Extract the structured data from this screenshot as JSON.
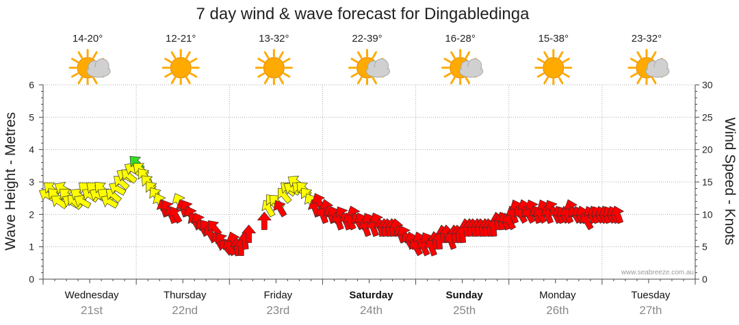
{
  "chart_data": {
    "type": "line",
    "title": "7 day wind & wave forecast for Dingabledinga",
    "ylabel_left": "Wave Height - Metres",
    "ylabel_right": "Wind Speed - Knots",
    "ylim_left": [
      0,
      6
    ],
    "ylim_right": [
      0,
      30
    ],
    "y_ticks_left": [
      "0",
      "1",
      "2",
      "3",
      "4",
      "5",
      "6"
    ],
    "y_ticks_right": [
      "0",
      "5",
      "10",
      "15",
      "20",
      "25",
      "30"
    ],
    "watermark": "www.seabreeze.com.au",
    "grid": true,
    "days": [
      {
        "name": "Wednesday",
        "date": "21st",
        "temp": "14-20°",
        "weather": "partly-cloudy",
        "bold": false
      },
      {
        "name": "Thursday",
        "date": "22nd",
        "temp": "12-21°",
        "weather": "sunny",
        "bold": false
      },
      {
        "name": "Friday",
        "date": "23rd",
        "temp": "13-32°",
        "weather": "sunny",
        "bold": false
      },
      {
        "name": "Saturday",
        "date": "24th",
        "temp": "22-39°",
        "weather": "partly-cloudy",
        "bold": true
      },
      {
        "name": "Sunday",
        "date": "25th",
        "temp": "16-28°",
        "weather": "partly-cloudy",
        "bold": true
      },
      {
        "name": "Monday",
        "date": "26th",
        "temp": "15-38°",
        "weather": "sunny",
        "bold": false
      },
      {
        "name": "Tuesday",
        "date": "27th",
        "temp": "23-32°",
        "weather": "partly-cloudy",
        "bold": false
      }
    ],
    "wind_series": {
      "name": "Wind",
      "x_unit": "hours from Wednesday 00:00",
      "points": [
        [
          1,
          13,
          150,
          "yellow"
        ],
        [
          2,
          14,
          140,
          "yellow"
        ],
        [
          3,
          13,
          135,
          "yellow"
        ],
        [
          4,
          12,
          145,
          "yellow"
        ],
        [
          5,
          14,
          150,
          "yellow"
        ],
        [
          6,
          13,
          140,
          "yellow"
        ],
        [
          7,
          12,
          150,
          "yellow"
        ],
        [
          8,
          12,
          135,
          "yellow"
        ],
        [
          9,
          13,
          145,
          "yellow"
        ],
        [
          10,
          12,
          150,
          "yellow"
        ],
        [
          11,
          14,
          140,
          "yellow"
        ],
        [
          12,
          13,
          145,
          "yellow"
        ],
        [
          13,
          14,
          140,
          "yellow"
        ],
        [
          14,
          13,
          150,
          "yellow"
        ],
        [
          15,
          14,
          135,
          "yellow"
        ],
        [
          16,
          13,
          145,
          "yellow"
        ],
        [
          17,
          12,
          150,
          "yellow"
        ],
        [
          18,
          13,
          140,
          "yellow"
        ],
        [
          19,
          14,
          150,
          "yellow"
        ],
        [
          20,
          15,
          140,
          "yellow"
        ],
        [
          21,
          16,
          150,
          "yellow"
        ],
        [
          22,
          16,
          140,
          "yellow"
        ],
        [
          23,
          17,
          150,
          "yellow"
        ],
        [
          24,
          18,
          135,
          "green"
        ],
        [
          25,
          17,
          140,
          "yellow"
        ],
        [
          26,
          16,
          130,
          "yellow"
        ],
        [
          27,
          15,
          135,
          "yellow"
        ],
        [
          28,
          14,
          130,
          "yellow"
        ],
        [
          29,
          13,
          125,
          "yellow"
        ],
        [
          30,
          12,
          115,
          "yellow"
        ],
        [
          31,
          11,
          110,
          "red"
        ],
        [
          32,
          11,
          120,
          "red"
        ],
        [
          33,
          10,
          110,
          "red"
        ],
        [
          34,
          10,
          120,
          "red"
        ],
        [
          35,
          12,
          115,
          "yellow"
        ],
        [
          36,
          11,
          110,
          "red"
        ],
        [
          37,
          11,
          120,
          "red"
        ],
        [
          38,
          10,
          115,
          "red"
        ],
        [
          39,
          9,
          120,
          "red"
        ],
        [
          40,
          9,
          115,
          "red"
        ],
        [
          41,
          8,
          120,
          "red"
        ],
        [
          42,
          8,
          125,
          "red"
        ],
        [
          43,
          7,
          120,
          "red"
        ],
        [
          44,
          8,
          130,
          "red"
        ],
        [
          45,
          6,
          120,
          "red"
        ],
        [
          46,
          6,
          125,
          "red"
        ],
        [
          47,
          5,
          130,
          "red"
        ],
        [
          48,
          5,
          120,
          "red"
        ],
        [
          49,
          6,
          110,
          "red"
        ],
        [
          50,
          5,
          95,
          "red"
        ],
        [
          51,
          5,
          90,
          "red"
        ],
        [
          52,
          6,
          95,
          "red"
        ],
        [
          53,
          7,
          90,
          "red"
        ],
        [
          57,
          9,
          90,
          "red"
        ],
        [
          58,
          11,
          120,
          "yellow"
        ],
        [
          59,
          12,
          130,
          "yellow"
        ],
        [
          60,
          12,
          135,
          "yellow"
        ],
        [
          61,
          11,
          120,
          "red"
        ],
        [
          62,
          13,
          130,
          "yellow"
        ],
        [
          63,
          14,
          140,
          "yellow"
        ],
        [
          64,
          14,
          150,
          "yellow"
        ],
        [
          65,
          15,
          145,
          "yellow"
        ],
        [
          66,
          14,
          140,
          "yellow"
        ],
        [
          67,
          14,
          135,
          "yellow"
        ],
        [
          68,
          13,
          130,
          "yellow"
        ],
        [
          69,
          12,
          120,
          "yellow"
        ],
        [
          70,
          11,
          110,
          "red"
        ],
        [
          71,
          12,
          115,
          "red"
        ],
        [
          72,
          10,
          110,
          "red"
        ],
        [
          73,
          11,
          105,
          "red"
        ],
        [
          74,
          10,
          110,
          "red"
        ],
        [
          75,
          10,
          115,
          "red"
        ],
        [
          76,
          9,
          110,
          "red"
        ],
        [
          77,
          10,
          120,
          "red"
        ],
        [
          78,
          9,
          110,
          "red"
        ],
        [
          79,
          9,
          115,
          "red"
        ],
        [
          80,
          10,
          110,
          "red"
        ],
        [
          81,
          9,
          120,
          "red"
        ],
        [
          82,
          9,
          115,
          "red"
        ],
        [
          83,
          8,
          110,
          "red"
        ],
        [
          84,
          9,
          120,
          "red"
        ],
        [
          85,
          8,
          110,
          "red"
        ],
        [
          86,
          9,
          115,
          "red"
        ],
        [
          87,
          8,
          100,
          "red"
        ],
        [
          88,
          8,
          95,
          "red"
        ],
        [
          89,
          8,
          100,
          "red"
        ],
        [
          90,
          8,
          95,
          "red"
        ],
        [
          91,
          8,
          100,
          "red"
        ],
        [
          92,
          7,
          110,
          "red"
        ],
        [
          93,
          7,
          115,
          "red"
        ],
        [
          94,
          6,
          120,
          "red"
        ],
        [
          95,
          6,
          110,
          "red"
        ],
        [
          96,
          5,
          120,
          "red"
        ],
        [
          97,
          6,
          110,
          "red"
        ],
        [
          98,
          5,
          115,
          "red"
        ],
        [
          99,
          6,
          120,
          "red"
        ],
        [
          100,
          5,
          110,
          "red"
        ],
        [
          101,
          6,
          100,
          "red"
        ],
        [
          102,
          6,
          95,
          "red"
        ],
        [
          103,
          7,
          100,
          "red"
        ],
        [
          104,
          7,
          95,
          "red"
        ],
        [
          105,
          6,
          110,
          "red"
        ],
        [
          106,
          7,
          95,
          "red"
        ],
        [
          107,
          7,
          100,
          "red"
        ],
        [
          108,
          7,
          95,
          "red"
        ],
        [
          109,
          8,
          100,
          "red"
        ],
        [
          110,
          8,
          95,
          "red"
        ],
        [
          111,
          8,
          100,
          "red"
        ],
        [
          112,
          8,
          95,
          "red"
        ],
        [
          113,
          8,
          100,
          "red"
        ],
        [
          114,
          8,
          95,
          "red"
        ],
        [
          115,
          8,
          100,
          "red"
        ],
        [
          116,
          8,
          95,
          "red"
        ],
        [
          117,
          9,
          100,
          "red"
        ],
        [
          118,
          9,
          95,
          "red"
        ],
        [
          119,
          9,
          110,
          "red"
        ],
        [
          120,
          9,
          120,
          "red"
        ],
        [
          121,
          10,
          110,
          "red"
        ],
        [
          122,
          11,
          115,
          "red"
        ],
        [
          123,
          10,
          120,
          "red"
        ],
        [
          124,
          11,
          110,
          "red"
        ],
        [
          125,
          10,
          120,
          "red"
        ],
        [
          126,
          11,
          115,
          "red"
        ],
        [
          127,
          10,
          110,
          "red"
        ],
        [
          128,
          10,
          120,
          "red"
        ],
        [
          129,
          11,
          115,
          "red"
        ],
        [
          130,
          10,
          110,
          "red"
        ],
        [
          131,
          11,
          120,
          "red"
        ],
        [
          132,
          10,
          115,
          "red"
        ],
        [
          133,
          10,
          110,
          "red"
        ],
        [
          134,
          10,
          120,
          "red"
        ],
        [
          135,
          10,
          115,
          "red"
        ],
        [
          136,
          11,
          110,
          "red"
        ],
        [
          137,
          10,
          120,
          "red"
        ],
        [
          138,
          10,
          115,
          "red"
        ],
        [
          139,
          10,
          110,
          "red"
        ],
        [
          140,
          9,
          120,
          "red"
        ],
        [
          141,
          10,
          115,
          "red"
        ],
        [
          142,
          10,
          110,
          "red"
        ],
        [
          143,
          10,
          120,
          "red"
        ],
        [
          144,
          10,
          115,
          "red"
        ],
        [
          145,
          10,
          110,
          "red"
        ],
        [
          146,
          10,
          120,
          "red"
        ],
        [
          147,
          10,
          115,
          "red"
        ],
        [
          148,
          10,
          110,
          "red"
        ]
      ]
    }
  },
  "colors": {
    "yellow": "#ffff00",
    "green": "#33dd22",
    "red": "#ff0000",
    "sun": "#ffaa00",
    "cloud": "#d0d0d0"
  }
}
